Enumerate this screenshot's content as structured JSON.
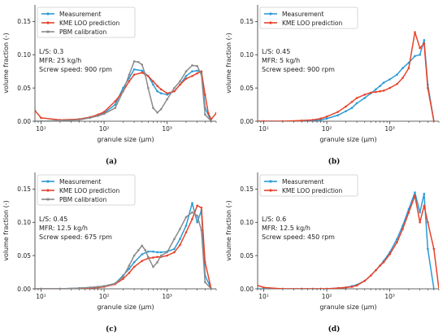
{
  "chart_data": [
    {
      "type": "line",
      "caption": "(a)",
      "xlabel": "granule size (μm)",
      "ylabel": "volume fraction (-)",
      "xscale": "log",
      "xlim": [
        8,
        6000
      ],
      "ylim": [
        0,
        0.175
      ],
      "yticks": [
        "0.00",
        "0.05",
        "0.10",
        "0.15"
      ],
      "xticks": [
        "10¹",
        "10²",
        "10³"
      ],
      "legend_position": "top-left",
      "annotation": [
        "L/S: 0.3",
        "MFR: 25 kg/h",
        "Screw speed: 900 rpm"
      ],
      "series": [
        {
          "name": "Measurement",
          "color": "#2b9bd6",
          "x": [
            8,
            10,
            20,
            40,
            60,
            80,
            100,
            150,
            200,
            250,
            300,
            400,
            500,
            600,
            700,
            800,
            1000,
            1300,
            1600,
            2000,
            2500,
            3000,
            3500,
            4000,
            5000
          ],
          "y": [
            0.0,
            0.0,
            0.001,
            0.003,
            0.006,
            0.009,
            0.012,
            0.025,
            0.05,
            0.065,
            0.078,
            0.076,
            0.068,
            0.055,
            0.045,
            0.042,
            0.04,
            0.045,
            0.055,
            0.068,
            0.075,
            0.076,
            0.074,
            0.02,
            0.0
          ]
        },
        {
          "name": "KME LOO prediction",
          "color": "#e8432b",
          "x": [
            8,
            10,
            20,
            40,
            60,
            80,
            100,
            150,
            200,
            250,
            300,
            400,
            500,
            600,
            700,
            800,
            1000,
            1300,
            1600,
            2000,
            2500,
            3000,
            3500,
            4000,
            4500,
            5000,
            6000
          ],
          "y": [
            0.016,
            0.005,
            0.002,
            0.003,
            0.006,
            0.01,
            0.014,
            0.03,
            0.045,
            0.06,
            0.07,
            0.073,
            0.068,
            0.06,
            0.053,
            0.048,
            0.042,
            0.045,
            0.055,
            0.064,
            0.068,
            0.072,
            0.075,
            0.04,
            0.012,
            0.003,
            0.012
          ]
        },
        {
          "name": "PBM calibration",
          "color": "#8a8a8a",
          "x": [
            8,
            10,
            20,
            40,
            60,
            80,
            100,
            150,
            200,
            250,
            300,
            350,
            400,
            450,
            500,
            600,
            700,
            800,
            1000,
            1300,
            1600,
            2000,
            2500,
            3000,
            3500,
            4000,
            5000
          ],
          "y": [
            0.0,
            0.0,
            0.001,
            0.002,
            0.005,
            0.008,
            0.011,
            0.02,
            0.045,
            0.07,
            0.09,
            0.089,
            0.085,
            0.07,
            0.05,
            0.02,
            0.013,
            0.018,
            0.033,
            0.05,
            0.06,
            0.075,
            0.084,
            0.083,
            0.07,
            0.01,
            0.0
          ]
        }
      ]
    },
    {
      "type": "line",
      "caption": "(b)",
      "xlabel": "granule size (μm)",
      "ylabel": "volume fraction (-)",
      "xscale": "log",
      "xlim": [
        8,
        6000
      ],
      "ylim": [
        0,
        0.175
      ],
      "yticks": [
        "0.00",
        "0.05",
        "0.10",
        "0.15"
      ],
      "xticks": [
        "10¹",
        "10²",
        "10³"
      ],
      "legend_position": "top-left",
      "annotation": [
        "L/S: 0.45",
        "MFR: 5 kg/h",
        "Screw speed: 900 rpm"
      ],
      "series": [
        {
          "name": "Measurement",
          "color": "#2b9bd6",
          "x": [
            8,
            10,
            20,
            40,
            60,
            80,
            100,
            150,
            200,
            250,
            300,
            400,
            500,
            600,
            700,
            800,
            1000,
            1300,
            1600,
            2000,
            2500,
            3000,
            3500,
            4000,
            5000
          ],
          "y": [
            0.0,
            0.0,
            0.0,
            0.0,
            0.001,
            0.002,
            0.004,
            0.009,
            0.015,
            0.02,
            0.027,
            0.035,
            0.042,
            0.048,
            0.053,
            0.058,
            0.063,
            0.07,
            0.08,
            0.088,
            0.098,
            0.1,
            0.122,
            0.055,
            0.0
          ]
        },
        {
          "name": "KME LOO prediction",
          "color": "#e8432b",
          "x": [
            8,
            10,
            20,
            40,
            60,
            80,
            100,
            150,
            200,
            250,
            300,
            400,
            500,
            600,
            700,
            800,
            1000,
            1300,
            1600,
            2000,
            2500,
            3000,
            3500,
            4000,
            5000
          ],
          "y": [
            0.0,
            0.0,
            0.0,
            0.001,
            0.002,
            0.004,
            0.007,
            0.014,
            0.022,
            0.029,
            0.035,
            0.04,
            0.043,
            0.044,
            0.045,
            0.046,
            0.05,
            0.056,
            0.065,
            0.08,
            0.134,
            0.11,
            0.117,
            0.05,
            0.0
          ]
        }
      ]
    },
    {
      "type": "line",
      "caption": "(c)",
      "xlabel": "granule size (μm)",
      "ylabel": "volume fraction (-)",
      "xscale": "log",
      "xlim": [
        8,
        6000
      ],
      "ylim": [
        0,
        0.175
      ],
      "yticks": [
        "0.00",
        "0.05",
        "0.10",
        "0.15"
      ],
      "xticks": [
        "10¹",
        "10²",
        "10³"
      ],
      "legend_position": "top-left",
      "annotation": [
        "L/S: 0.45",
        "MFR: 12.5 kg/h",
        "Screw speed: 675 rpm"
      ],
      "series": [
        {
          "name": "Measurement",
          "color": "#2b9bd6",
          "x": [
            8,
            10,
            20,
            40,
            60,
            80,
            100,
            150,
            200,
            250,
            300,
            400,
            500,
            600,
            700,
            800,
            1000,
            1300,
            1600,
            2000,
            2500,
            3000,
            3500,
            4000,
            5000
          ],
          "y": [
            0.0,
            0.0,
            0.0,
            0.001,
            0.002,
            0.003,
            0.004,
            0.008,
            0.02,
            0.03,
            0.04,
            0.052,
            0.056,
            0.056,
            0.055,
            0.055,
            0.056,
            0.06,
            0.075,
            0.095,
            0.129,
            0.1,
            0.118,
            0.02,
            0.0
          ]
        },
        {
          "name": "KME LOO prediction",
          "color": "#e8432b",
          "x": [
            8,
            10,
            20,
            40,
            60,
            80,
            100,
            150,
            200,
            250,
            300,
            400,
            500,
            600,
            700,
            800,
            1000,
            1300,
            1600,
            2000,
            2500,
            3000,
            3500,
            4000,
            5000
          ],
          "y": [
            0.0,
            0.0,
            0.0,
            0.0,
            0.001,
            0.002,
            0.003,
            0.007,
            0.015,
            0.024,
            0.033,
            0.042,
            0.046,
            0.047,
            0.048,
            0.048,
            0.05,
            0.055,
            0.066,
            0.085,
            0.105,
            0.125,
            0.122,
            0.04,
            0.0
          ]
        },
        {
          "name": "PBM calibration",
          "color": "#8a8a8a",
          "x": [
            8,
            10,
            20,
            40,
            60,
            80,
            100,
            150,
            200,
            250,
            300,
            350,
            400,
            450,
            500,
            600,
            700,
            800,
            1000,
            1300,
            1600,
            2000,
            2500,
            3000,
            3500,
            4000,
            5000
          ],
          "y": [
            0.0,
            0.0,
            0.0,
            0.001,
            0.002,
            0.003,
            0.004,
            0.008,
            0.018,
            0.035,
            0.05,
            0.058,
            0.065,
            0.058,
            0.048,
            0.033,
            0.04,
            0.05,
            0.055,
            0.075,
            0.09,
            0.108,
            0.115,
            0.11,
            0.088,
            0.01,
            0.0
          ]
        }
      ]
    },
    {
      "type": "line",
      "caption": "(d)",
      "xlabel": "granule size (μm)",
      "ylabel": "volume fraction (-)",
      "xscale": "log",
      "xlim": [
        8,
        6000
      ],
      "ylim": [
        0,
        0.175
      ],
      "yticks": [
        "0.00",
        "0.05",
        "0.10",
        "0.15"
      ],
      "xticks": [
        "10¹",
        "10²",
        "10³"
      ],
      "legend_position": "top-left",
      "annotation": [
        "L/S: 0.6",
        "MFR: 12.5 kg/h",
        "Screw speed: 450 rpm"
      ],
      "series": [
        {
          "name": "Measurement",
          "color": "#2b9bd6",
          "x": [
            8,
            10,
            20,
            40,
            60,
            80,
            100,
            150,
            200,
            250,
            300,
            400,
            500,
            600,
            700,
            800,
            1000,
            1300,
            1600,
            2000,
            2500,
            3000,
            3500,
            4000,
            5000
          ],
          "y": [
            0.0,
            0.0,
            0.0,
            0.0,
            0.0,
            0.0,
            0.0,
            0.001,
            0.002,
            0.004,
            0.006,
            0.012,
            0.02,
            0.028,
            0.035,
            0.042,
            0.055,
            0.075,
            0.095,
            0.12,
            0.145,
            0.115,
            0.143,
            0.06,
            0.0
          ]
        },
        {
          "name": "KME LOO prediction",
          "color": "#e8432b",
          "x": [
            8,
            10,
            20,
            40,
            60,
            80,
            100,
            150,
            200,
            250,
            300,
            400,
            500,
            600,
            700,
            800,
            1000,
            1300,
            1600,
            2000,
            2500,
            3000,
            3500,
            4000,
            5000,
            6000
          ],
          "y": [
            0.005,
            0.002,
            0.0,
            0.0,
            0.0,
            0.0,
            0.0,
            0.001,
            0.002,
            0.003,
            0.005,
            0.012,
            0.02,
            0.028,
            0.035,
            0.04,
            0.052,
            0.07,
            0.09,
            0.115,
            0.14,
            0.1,
            0.125,
            0.1,
            0.06,
            0.0
          ]
        }
      ]
    }
  ]
}
